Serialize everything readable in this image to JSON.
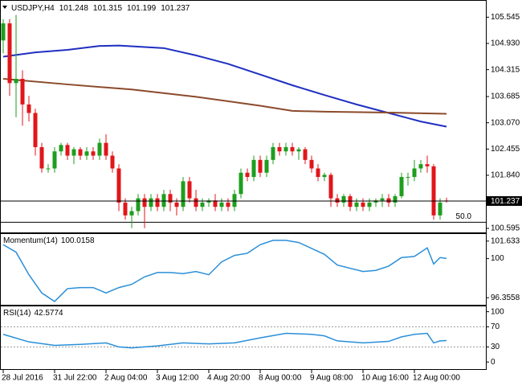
{
  "chart_data": [
    {
      "type": "candlestick",
      "title": "USDJPY,H4",
      "categories": [
        "28 Jul 2016",
        null,
        null,
        null,
        null,
        null,
        null,
        null,
        "31 Jul 22:00",
        null,
        null,
        null,
        null,
        null,
        null,
        null,
        "2 Aug 04:00",
        null,
        null,
        null,
        null,
        null,
        null,
        null,
        "3 Aug 12:00",
        null,
        null,
        null,
        null,
        null,
        null,
        null,
        "4 Aug 20:00",
        null,
        null,
        null,
        null,
        null,
        null,
        null,
        "8 Aug 00:00",
        null,
        null,
        null,
        null,
        null,
        null,
        null,
        "9 Aug 08:00",
        null,
        null,
        null,
        null,
        null,
        null,
        null,
        "10 Aug 16:00",
        null,
        null,
        null,
        null,
        null,
        null,
        null,
        "12 Aug 00:00",
        null,
        null,
        null,
        null,
        null
      ],
      "open": [
        105.0,
        105.4,
        104.0,
        104.1,
        103.5,
        103.3,
        102.5,
        102.0,
        102.0,
        102.4,
        102.55,
        102.3,
        102.45,
        102.3,
        102.4,
        102.3,
        102.6,
        102.3,
        102.0,
        101.2,
        100.9,
        101.0,
        101.3,
        101.1,
        101.3,
        101.1,
        101.4,
        101.2,
        101.1,
        101.7,
        101.3,
        101.1,
        101.2,
        101.25,
        101.1,
        101.2,
        101.1,
        101.4,
        101.9,
        101.8,
        102.2,
        101.9,
        102.2,
        102.5,
        102.4,
        102.5,
        102.4,
        102.45,
        102.2,
        102.0,
        101.8,
        101.85,
        101.3,
        101.2,
        101.35,
        101.1,
        101.2,
        101.1,
        101.2,
        101.25,
        101.3,
        101.2,
        101.35,
        101.8,
        101.8,
        102.0,
        102.1,
        102.05,
        100.9,
        101.248
      ],
      "high": [
        105.5,
        105.5,
        105.6,
        104.3,
        103.7,
        103.4,
        102.6,
        102.1,
        102.5,
        102.6,
        102.6,
        102.5,
        102.5,
        102.5,
        102.5,
        102.7,
        102.8,
        102.4,
        102.1,
        101.3,
        101.1,
        101.4,
        101.4,
        101.4,
        101.4,
        101.5,
        101.5,
        101.3,
        101.8,
        101.8,
        101.5,
        101.3,
        101.3,
        101.4,
        101.3,
        101.3,
        101.5,
        102.0,
        102.0,
        102.3,
        102.3,
        102.3,
        102.6,
        102.6,
        102.6,
        102.6,
        102.5,
        102.5,
        102.3,
        102.1,
        101.9,
        101.9,
        101.4,
        101.4,
        101.4,
        101.3,
        101.3,
        101.3,
        101.3,
        101.4,
        101.4,
        101.4,
        101.9,
        101.9,
        102.2,
        102.2,
        102.3,
        102.1,
        101.3,
        101.315
      ],
      "low": [
        104.7,
        103.7,
        103.2,
        103.0,
        103.1,
        102.3,
        101.9,
        101.9,
        101.9,
        102.3,
        102.2,
        102.1,
        102.2,
        102.2,
        102.2,
        102.2,
        102.2,
        101.9,
        101.0,
        100.8,
        100.6,
        100.9,
        100.6,
        101.0,
        101.0,
        101.0,
        101.0,
        100.9,
        101.0,
        101.2,
        101.0,
        101.0,
        101.1,
        101.0,
        101.0,
        101.0,
        101.0,
        101.3,
        101.7,
        101.7,
        101.8,
        101.8,
        102.1,
        102.3,
        102.3,
        102.3,
        102.2,
        102.1,
        101.9,
        101.7,
        101.7,
        101.1,
        101.1,
        101.1,
        101.0,
        101.0,
        101.0,
        101.0,
        101.1,
        101.1,
        101.1,
        101.1,
        101.3,
        101.6,
        101.7,
        101.9,
        101.9,
        100.8,
        100.8,
        101.199
      ],
      "close": [
        105.4,
        104.0,
        104.1,
        103.5,
        103.3,
        102.5,
        102.0,
        102.0,
        102.4,
        102.55,
        102.3,
        102.45,
        102.3,
        102.4,
        102.3,
        102.6,
        102.3,
        102.0,
        101.2,
        100.9,
        101.0,
        101.3,
        101.1,
        101.3,
        101.1,
        101.4,
        101.2,
        101.1,
        101.7,
        101.3,
        101.1,
        101.2,
        101.25,
        101.1,
        101.2,
        101.1,
        101.4,
        101.9,
        101.8,
        102.2,
        101.9,
        102.2,
        102.5,
        102.4,
        102.5,
        102.4,
        102.45,
        102.2,
        102.0,
        101.8,
        101.85,
        101.3,
        101.2,
        101.35,
        101.1,
        101.2,
        101.1,
        101.2,
        101.25,
        101.3,
        101.2,
        101.35,
        101.8,
        101.8,
        102.0,
        102.1,
        102.05,
        100.9,
        101.2,
        101.237
      ],
      "up_color": "#1e9e1e",
      "down_color": "#e0161b",
      "series": [
        {
          "color": "#1f2fc0",
          "x": [
            0,
            5,
            10,
            15,
            18,
            25,
            30,
            35,
            40,
            45,
            50,
            55,
            60,
            65,
            69
          ],
          "values": [
            104.62,
            104.72,
            104.78,
            104.87,
            104.88,
            104.82,
            104.65,
            104.45,
            104.2,
            103.95,
            103.72,
            103.5,
            103.3,
            103.1,
            102.98
          ]
        },
        {
          "color": "#8b4a2b",
          "x": [
            0,
            10,
            20,
            30,
            40,
            45,
            50,
            60,
            69
          ],
          "values": [
            104.1,
            103.97,
            103.85,
            103.68,
            103.47,
            103.35,
            103.33,
            103.31,
            103.28
          ]
        }
      ],
      "level": {
        "label": "50.0",
        "value": 100.74
      },
      "ylim": [
        100.52,
        105.91
      ],
      "yticks": [
        105.545,
        {
          "value": 104.93,
          "label": "104.930"
        },
        104.315,
        103.685,
        {
          "value": 103.07,
          "label": "103.070"
        },
        102.455,
        {
          "value": 101.84,
          "label": "101.840"
        },
        100.595
      ]
    },
    {
      "type": "line",
      "title": "Momentum(14)",
      "color": "#2a8fd9",
      "x": [
        0,
        2,
        4,
        6,
        8,
        10,
        12,
        14,
        16,
        18,
        20,
        22,
        24,
        26,
        28,
        30,
        32,
        34,
        36,
        38,
        40,
        42,
        44,
        46,
        50,
        52,
        56,
        58,
        60,
        62,
        64,
        66,
        67,
        68,
        69
      ],
      "values": [
        101.3,
        100.6,
        98.5,
        96.8,
        96.0,
        97.2,
        97.3,
        97.3,
        96.8,
        97.3,
        97.6,
        98.3,
        98.7,
        98.7,
        98.6,
        98.8,
        98.5,
        99.7,
        100.3,
        100.5,
        101.3,
        101.7,
        101.7,
        101.5,
        100.4,
        99.4,
        98.8,
        98.9,
        99.3,
        100.1,
        100.2,
        101.0,
        99.5,
        100.1,
        100.0158
      ],
      "ylim": [
        95.77,
        102.22
      ],
      "yticks": [
        101.633,
        100,
        96.3558
      ]
    },
    {
      "type": "line",
      "title": "RSI(14)",
      "color": "#2a8fd9",
      "x": [
        0,
        4,
        8,
        12,
        16,
        18,
        20,
        24,
        28,
        32,
        36,
        40,
        44,
        48,
        50,
        52,
        56,
        60,
        62,
        64,
        66,
        67,
        68,
        69
      ],
      "values": [
        55,
        40,
        33,
        35,
        38,
        30,
        28,
        32,
        38,
        36,
        38,
        48,
        57,
        55,
        52,
        42,
        38,
        41,
        50,
        55,
        57,
        38,
        42,
        42.5774
      ],
      "levels": [
        70,
        30
      ],
      "ylim": [
        -12.5,
        109
      ],
      "yticks": [
        100,
        70,
        30,
        0
      ]
    }
  ]
}
